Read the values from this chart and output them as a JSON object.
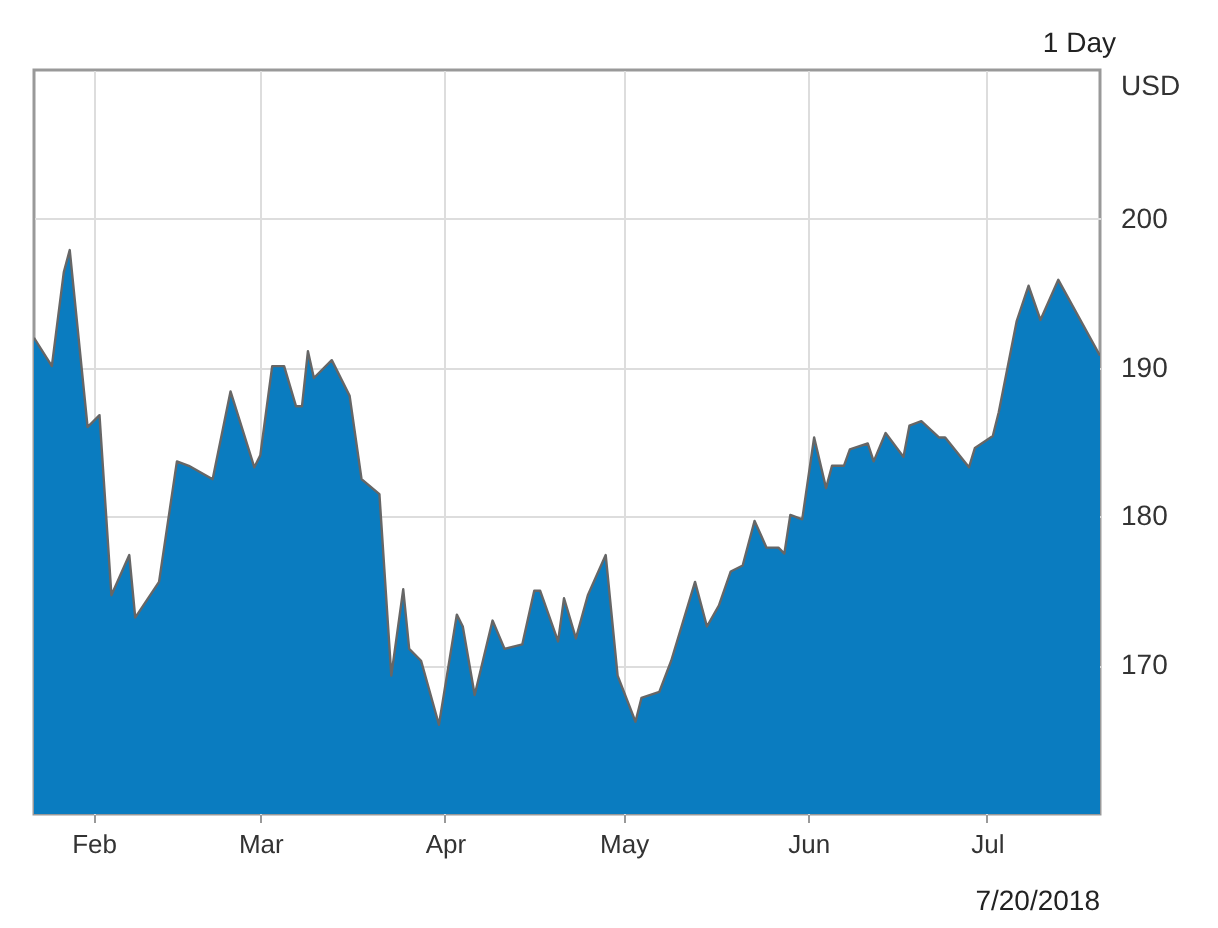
{
  "chart_data": {
    "type": "area",
    "annotations": [
      "1 Day",
      "7/20/2018"
    ],
    "ylabel": "USD",
    "x": [
      "2018-01-22",
      "2018-01-25",
      "2018-01-27",
      "2018-01-28",
      "2018-01-31",
      "2018-02-02",
      "2018-02-04",
      "2018-02-07",
      "2018-02-08",
      "2018-02-12",
      "2018-02-15",
      "2018-02-17",
      "2018-02-21",
      "2018-02-24",
      "2018-02-28",
      "2018-03-01",
      "2018-03-03",
      "2018-03-05",
      "2018-03-07",
      "2018-03-08",
      "2018-03-09",
      "2018-03-10",
      "2018-03-13",
      "2018-03-16",
      "2018-03-18",
      "2018-03-21",
      "2018-03-23",
      "2018-03-25",
      "2018-03-26",
      "2018-03-28",
      "2018-03-31",
      "2018-04-03",
      "2018-04-04",
      "2018-04-06",
      "2018-04-09",
      "2018-04-11",
      "2018-04-14",
      "2018-04-16",
      "2018-04-17",
      "2018-04-20",
      "2018-04-21",
      "2018-04-23",
      "2018-04-25",
      "2018-04-28",
      "2018-04-30",
      "2018-05-03",
      "2018-05-04",
      "2018-05-07",
      "2018-05-09",
      "2018-05-13",
      "2018-05-15",
      "2018-05-17",
      "2018-05-19",
      "2018-05-21",
      "2018-05-23",
      "2018-05-25",
      "2018-05-27",
      "2018-05-28",
      "2018-05-29",
      "2018-05-31",
      "2018-06-02",
      "2018-06-04",
      "2018-06-05",
      "2018-06-07",
      "2018-06-08",
      "2018-06-11",
      "2018-06-12",
      "2018-06-14",
      "2018-06-17",
      "2018-06-18",
      "2018-06-20",
      "2018-06-23",
      "2018-06-24",
      "2018-06-28",
      "2018-06-29",
      "2018-07-02",
      "2018-07-03",
      "2018-07-06",
      "2018-07-08",
      "2018-07-10",
      "2018-07-13",
      "2018-07-20"
    ],
    "series": [
      {
        "color": "#0a7cc0",
        "values": [
          192.0,
          190.1,
          196.4,
          197.9,
          186.0,
          186.8,
          174.7,
          177.4,
          173.2,
          175.6,
          183.7,
          183.4,
          182.5,
          188.4,
          183.3,
          184.1,
          190.1,
          190.1,
          187.4,
          187.4,
          191.1,
          189.3,
          190.5,
          188.1,
          182.5,
          181.5,
          169.3,
          175.1,
          171.1,
          170.3,
          166.0,
          173.4,
          172.6,
          168.0,
          173.0,
          171.1,
          171.4,
          175.0,
          175.0,
          171.6,
          174.5,
          171.8,
          174.7,
          177.4,
          169.3,
          166.2,
          167.8,
          168.2,
          170.3,
          175.6,
          172.6,
          174.0,
          176.3,
          176.7,
          179.7,
          177.9,
          177.9,
          177.5,
          180.1,
          179.8,
          185.3,
          181.9,
          183.4,
          183.4,
          184.5,
          184.9,
          183.7,
          185.6,
          184.0,
          186.1,
          186.4,
          185.3,
          185.3,
          183.3,
          184.6,
          185.4,
          187.0,
          193.1,
          195.5,
          193.2,
          195.9,
          190.8
        ]
      }
    ],
    "xlim": [
      "2018-01-22",
      "2018-07-20"
    ],
    "xticks": [
      {
        "value": "2018-02-01",
        "label": "Feb"
      },
      {
        "value": "2018-03-01",
        "label": "Mar"
      },
      {
        "value": "2018-04-01",
        "label": "Apr"
      },
      {
        "value": "2018-05-01",
        "label": "May"
      },
      {
        "value": "2018-06-01",
        "label": "Jun"
      },
      {
        "value": "2018-07-01",
        "label": "Jul"
      }
    ],
    "ylim": [
      160,
      210
    ],
    "yticks": [
      170,
      180,
      190,
      200
    ],
    "grid": true
  }
}
